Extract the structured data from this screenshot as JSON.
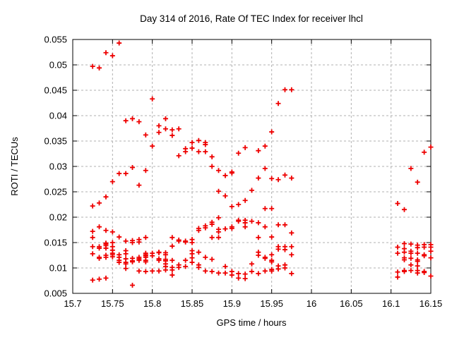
{
  "chart_data": {
    "type": "scatter",
    "title": "Day 314 of 2016, Rate Of TEC Index for receiver lhcl",
    "xlabel": "GPS time / hours",
    "ylabel": "ROTI / TECUs",
    "xlim": [
      15.7,
      16.15
    ],
    "ylim": [
      0.005,
      0.055
    ],
    "xticks": [
      15.7,
      15.75,
      15.8,
      15.85,
      15.9,
      15.95,
      16,
      16.05,
      16.1,
      16.15
    ],
    "xtick_labels": [
      "15.7",
      "15.75",
      "15.8",
      "15.85",
      "15.9",
      "15.95",
      "16",
      "16.05",
      "16.1",
      "16.15"
    ],
    "yticks": [
      0.005,
      0.01,
      0.015,
      0.02,
      0.025,
      0.03,
      0.035,
      0.04,
      0.045,
      0.05,
      0.055
    ],
    "ytick_labels": [
      "0.005",
      "0.01",
      "0.015",
      "0.02",
      "0.025",
      "0.03",
      "0.035",
      "0.04",
      "0.045",
      "0.05",
      "0.055"
    ],
    "grid": true,
    "legend": "none",
    "marker": "plus",
    "colors": {
      "marker": "#ee0000",
      "grid": "#b0b0b0",
      "frame": "#000000",
      "text": "#000000",
      "background": "#ffffff"
    },
    "series": [
      {
        "name": "roti",
        "epochs": [
          {
            "t": 15.725,
            "roti": [
              0.0497,
              0.0222,
              0.0172,
              0.016,
              0.0142,
              0.0128,
              0.0076
            ]
          },
          {
            "t": 15.7333,
            "roti": [
              0.0494,
              0.0228,
              0.0181,
              0.0142,
              0.0139,
              0.0121,
              0.0119,
              0.0078
            ]
          },
          {
            "t": 15.7417,
            "roti": [
              0.0524,
              0.024,
              0.0174,
              0.0149,
              0.0147,
              0.0144,
              0.0139,
              0.0125,
              0.0121,
              0.008
            ]
          },
          {
            "t": 15.75,
            "roti": [
              0.0518,
              0.027,
              0.0171,
              0.015,
              0.0142,
              0.0135,
              0.0129,
              0.0126,
              0.0122
            ]
          },
          {
            "t": 15.7583,
            "roti": [
              0.0543,
              0.0286,
              0.0161,
              0.0126,
              0.0121,
              0.0115,
              0.0111
            ]
          },
          {
            "t": 15.7667,
            "roti": [
              0.039,
              0.0286,
              0.0153,
              0.0134,
              0.0128,
              0.0118,
              0.0111,
              0.0108,
              0.0099
            ]
          },
          {
            "t": 15.775,
            "roti": [
              0.0394,
              0.0298,
              0.0154,
              0.015,
              0.0119,
              0.0114,
              0.0112,
              0.0066
            ]
          },
          {
            "t": 15.7833,
            "roti": [
              0.0388,
              0.0263,
              0.0156,
              0.0151,
              0.0121,
              0.0118,
              0.0115,
              0.0094
            ]
          },
          {
            "t": 15.7917,
            "roti": [
              0.0362,
              0.0292,
              0.016,
              0.0129,
              0.0126,
              0.0124,
              0.0121,
              0.0115,
              0.0112,
              0.0093
            ]
          },
          {
            "t": 15.8,
            "roti": [
              0.0433,
              0.034,
              0.0129,
              0.0124,
              0.0094
            ]
          },
          {
            "t": 15.8083,
            "roti": [
              0.038,
              0.0367,
              0.0131,
              0.013,
              0.0118,
              0.0115,
              0.0094
            ]
          },
          {
            "t": 15.8167,
            "roti": [
              0.0394,
              0.0374,
              0.013,
              0.0126,
              0.0117,
              0.0114,
              0.0108,
              0.0103,
              0.0096
            ]
          },
          {
            "t": 15.825,
            "roti": [
              0.0372,
              0.0361,
              0.016,
              0.0143,
              0.0115,
              0.0101,
              0.0096,
              0.0086
            ]
          },
          {
            "t": 15.8333,
            "roti": [
              0.0374,
              0.0321,
              0.0155,
              0.0153,
              0.0106,
              0.0101
            ]
          },
          {
            "t": 15.8417,
            "roti": [
              0.0335,
              0.0329,
              0.0153,
              0.0151,
              0.0115,
              0.0103
            ]
          },
          {
            "t": 15.85,
            "roti": [
              0.0347,
              0.0336,
              0.0156,
              0.015,
              0.0134,
              0.0128,
              0.012,
              0.0111
            ]
          },
          {
            "t": 15.8583,
            "roti": [
              0.0351,
              0.0329,
              0.0178,
              0.0174,
              0.0131,
              0.0106,
              0.0101
            ]
          },
          {
            "t": 15.8667,
            "roti": [
              0.0347,
              0.0343,
              0.0329,
              0.0183,
              0.0179,
              0.0121,
              0.0094
            ]
          },
          {
            "t": 15.875,
            "roti": [
              0.0319,
              0.03,
              0.019,
              0.0186,
              0.016,
              0.0117,
              0.0093
            ]
          },
          {
            "t": 15.8833,
            "roti": [
              0.0292,
              0.0251,
              0.0199,
              0.0176,
              0.0171,
              0.016,
              0.009
            ]
          },
          {
            "t": 15.8917,
            "roti": [
              0.0282,
              0.0242,
              0.0177,
              0.0103,
              0.009
            ]
          },
          {
            "t": 15.9,
            "roti": [
              0.0289,
              0.0287,
              0.0221,
              0.0181,
              0.0178,
              0.0093,
              0.0086
            ]
          },
          {
            "t": 15.9083,
            "roti": [
              0.0326,
              0.0225,
              0.0194,
              0.0192,
              0.0089,
              0.008
            ]
          },
          {
            "t": 15.9167,
            "roti": [
              0.0337,
              0.0233,
              0.0194,
              0.0189,
              0.0181,
              0.0088,
              0.0079
            ]
          },
          {
            "t": 15.925,
            "roti": [
              0.0253,
              0.0192,
              0.0108,
              0.0093
            ]
          },
          {
            "t": 15.9333,
            "roti": [
              0.0331,
              0.0277,
              0.0189,
              0.016,
              0.0131,
              0.0125,
              0.0089
            ]
          },
          {
            "t": 15.9417,
            "roti": [
              0.034,
              0.0296,
              0.0217,
              0.0181,
              0.0121,
              0.0119,
              0.0094
            ]
          },
          {
            "t": 15.95,
            "roti": [
              0.0368,
              0.0276,
              0.0217,
              0.0161,
              0.0126,
              0.0115,
              0.0112,
              0.0097,
              0.0094
            ]
          },
          {
            "t": 15.9583,
            "roti": [
              0.0424,
              0.0274,
              0.0185,
              0.0142,
              0.0137,
              0.0104,
              0.0098
            ]
          },
          {
            "t": 15.9667,
            "roti": [
              0.0451,
              0.0283,
              0.0185,
              0.0142,
              0.0136,
              0.0106,
              0.01
            ]
          },
          {
            "t": 15.975,
            "roti": [
              0.0451,
              0.0277,
              0.0169,
              0.0142,
              0.0126,
              0.0089
            ]
          },
          {
            "t": 16.1083,
            "roti": [
              0.0227,
              0.0141,
              0.0129,
              0.0092,
              0.0082
            ]
          },
          {
            "t": 16.1167,
            "roti": [
              0.0215,
              0.0148,
              0.0138,
              0.0131,
              0.012,
              0.0116,
              0.0095,
              0.0093
            ]
          },
          {
            "t": 16.125,
            "roti": [
              0.0296,
              0.0147,
              0.0133,
              0.0129,
              0.0119,
              0.0106,
              0.0095
            ]
          },
          {
            "t": 16.1333,
            "roti": [
              0.0269,
              0.0145,
              0.014,
              0.0129,
              0.0116,
              0.0113,
              0.0104,
              0.0095,
              0.009
            ]
          },
          {
            "t": 16.1417,
            "roti": [
              0.0328,
              0.0146,
              0.0141,
              0.0126,
              0.0124,
              0.0093,
              0.0091
            ]
          },
          {
            "t": 16.15,
            "roti": [
              0.0338,
              0.0146,
              0.0141,
              0.0133,
              0.012,
              0.0084
            ]
          }
        ]
      }
    ]
  }
}
